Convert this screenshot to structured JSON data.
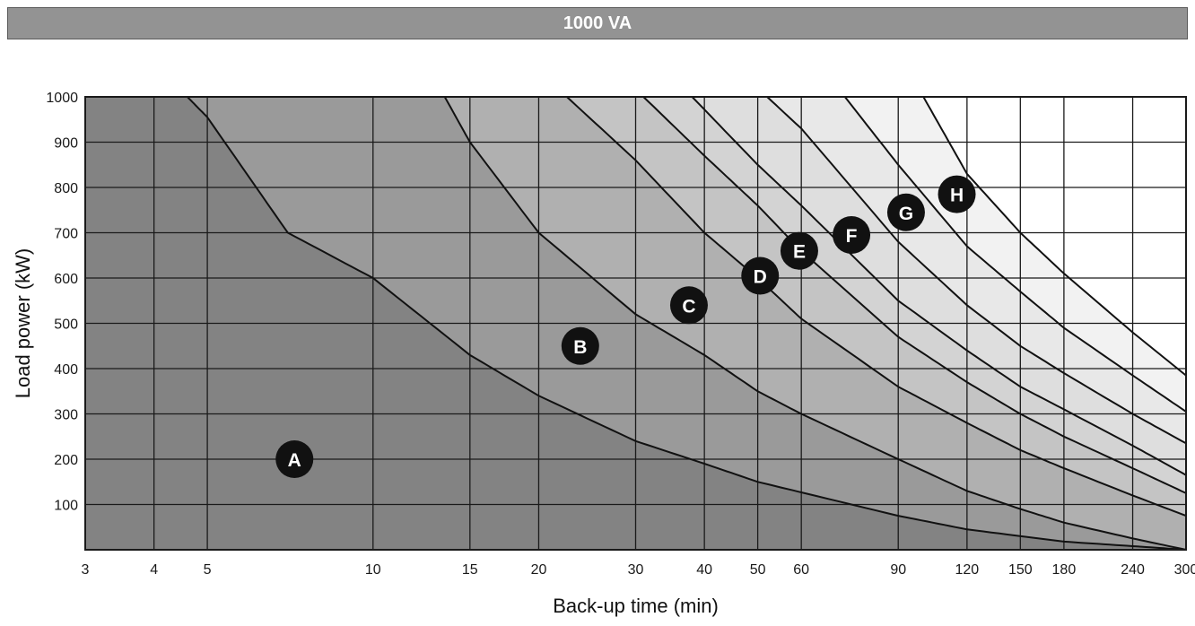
{
  "header": {
    "title": "1000 VA"
  },
  "chart_data": {
    "type": "area",
    "title": "1000 VA",
    "xlabel": "Back-up time (min)",
    "ylabel": "Load power (kW)",
    "xscale": "log",
    "xlim": [
      3,
      300
    ],
    "ylim": [
      0,
      1000
    ],
    "x_ticks": [
      3,
      4,
      5,
      10,
      15,
      20,
      30,
      40,
      50,
      60,
      90,
      120,
      150,
      180,
      240,
      300
    ],
    "x_tick_labels": [
      "3",
      "4",
      "5",
      "10",
      "15",
      "20",
      "30",
      "40",
      "50",
      "60",
      "90",
      "120",
      "150",
      "180",
      "240",
      "300"
    ],
    "y_ticks": [
      100,
      200,
      300,
      400,
      500,
      600,
      700,
      800,
      900,
      1000
    ],
    "y_tick_labels": [
      "100",
      "200",
      "300",
      "400",
      "500",
      "600",
      "700",
      "800",
      "900",
      "1000"
    ],
    "grid": true,
    "series": [
      {
        "points": [
          [
            4.6,
            1000
          ],
          [
            5,
            955
          ],
          [
            7,
            700
          ],
          [
            10,
            600
          ],
          [
            15,
            430
          ],
          [
            20,
            340
          ],
          [
            30,
            240
          ],
          [
            40,
            190
          ],
          [
            50,
            150
          ],
          [
            90,
            75
          ],
          [
            120,
            45
          ],
          [
            180,
            18
          ],
          [
            240,
            8
          ],
          [
            300,
            0
          ]
        ]
      },
      {
        "points": [
          [
            13.5,
            1000
          ],
          [
            15,
            900
          ],
          [
            20,
            700
          ],
          [
            30,
            520
          ],
          [
            40,
            430
          ],
          [
            50,
            350
          ],
          [
            60,
            300
          ],
          [
            90,
            200
          ],
          [
            120,
            130
          ],
          [
            150,
            90
          ],
          [
            180,
            60
          ],
          [
            240,
            25
          ],
          [
            300,
            0
          ]
        ]
      },
      {
        "points": [
          [
            22.5,
            1000
          ],
          [
            30,
            860
          ],
          [
            40,
            700
          ],
          [
            50,
            600
          ],
          [
            60,
            510
          ],
          [
            90,
            360
          ],
          [
            120,
            280
          ],
          [
            150,
            220
          ],
          [
            180,
            180
          ],
          [
            240,
            120
          ],
          [
            300,
            75
          ]
        ]
      },
      {
        "points": [
          [
            31,
            1000
          ],
          [
            40,
            870
          ],
          [
            50,
            760
          ],
          [
            60,
            660
          ],
          [
            90,
            470
          ],
          [
            120,
            370
          ],
          [
            150,
            300
          ],
          [
            180,
            250
          ],
          [
            240,
            180
          ],
          [
            300,
            125
          ]
        ]
      },
      {
        "points": [
          [
            38,
            1000
          ],
          [
            50,
            850
          ],
          [
            60,
            760
          ],
          [
            90,
            550
          ],
          [
            120,
            440
          ],
          [
            150,
            360
          ],
          [
            180,
            310
          ],
          [
            240,
            230
          ],
          [
            300,
            165
          ]
        ]
      },
      {
        "points": [
          [
            52,
            1000
          ],
          [
            60,
            930
          ],
          [
            90,
            680
          ],
          [
            120,
            540
          ],
          [
            150,
            450
          ],
          [
            180,
            390
          ],
          [
            240,
            300
          ],
          [
            300,
            235
          ]
        ]
      },
      {
        "points": [
          [
            72,
            1000
          ],
          [
            90,
            850
          ],
          [
            120,
            670
          ],
          [
            150,
            570
          ],
          [
            180,
            490
          ],
          [
            240,
            385
          ],
          [
            300,
            305
          ]
        ]
      },
      {
        "points": [
          [
            100,
            1000
          ],
          [
            120,
            830
          ],
          [
            150,
            700
          ],
          [
            180,
            610
          ],
          [
            240,
            480
          ],
          [
            300,
            385
          ]
        ]
      }
    ],
    "zone_fills": [
      "#838383",
      "#9a9a9a",
      "#b0b0b0",
      "#c4c4c4",
      "#d3d3d3",
      "#dedede",
      "#e8e8e8",
      "#f2f2f2",
      "#ffffff"
    ],
    "zone_labels": [
      {
        "text": "A",
        "x": 7.2,
        "y": 200
      },
      {
        "text": "B",
        "x": 23.8,
        "y": 450
      },
      {
        "text": "C",
        "x": 37.5,
        "y": 540
      },
      {
        "text": "D",
        "x": 50.5,
        "y": 605
      },
      {
        "text": "E",
        "x": 59.5,
        "y": 660
      },
      {
        "text": "F",
        "x": 74,
        "y": 695
      },
      {
        "text": "G",
        "x": 93,
        "y": 745
      },
      {
        "text": "H",
        "x": 115,
        "y": 785
      }
    ]
  }
}
